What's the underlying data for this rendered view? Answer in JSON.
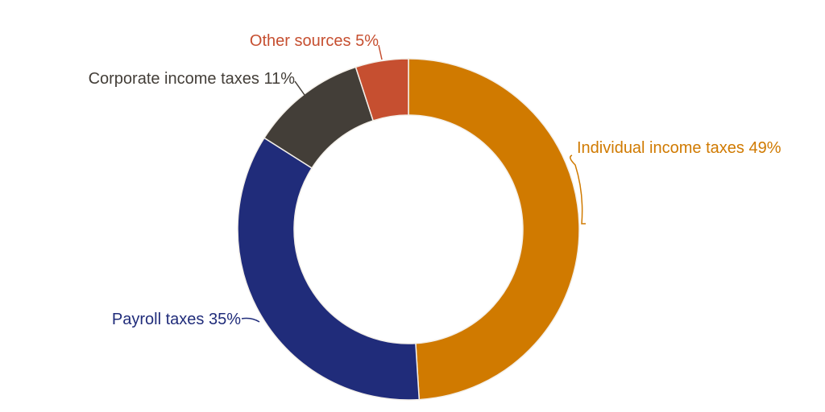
{
  "chart_data": {
    "type": "pie",
    "style": "donut",
    "direction": "clockwise from top",
    "categories": [
      "Individual income taxes",
      "Payroll taxes",
      "Corporate income taxes",
      "Other sources"
    ],
    "values": [
      49,
      35,
      11,
      5
    ],
    "labels": [
      "Individual income taxes 49%",
      "Payroll taxes 35%",
      "Corporate income taxes 11%",
      "Other sources 5%"
    ],
    "colors": [
      "#d07a00",
      "#202c7a",
      "#433e38",
      "#c64f30"
    ]
  }
}
